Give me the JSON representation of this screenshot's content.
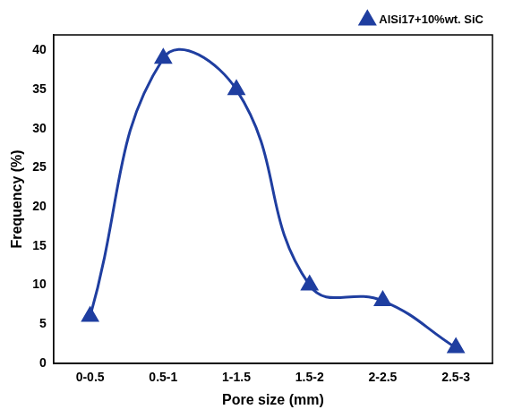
{
  "chart_data": {
    "type": "line",
    "x_label": "Pore size (mm)",
    "y_label": "Frequency (%)",
    "categories": [
      "0-0.5",
      "0.5-1",
      "1-1.5",
      "1.5-2",
      "2-2.5",
      "2.5-3"
    ],
    "series": [
      {
        "name": "AlSi17+10%wt. SiC",
        "color": "#1f3ea0",
        "marker": "triangle",
        "line_style": "solid",
        "values": [
          6,
          39,
          35,
          10,
          8,
          2
        ]
      }
    ],
    "ylim": [
      0,
      42
    ],
    "yticks": [
      0,
      5,
      10,
      15,
      20,
      25,
      30,
      35,
      40
    ],
    "grid": false,
    "legend": "upper right"
  }
}
